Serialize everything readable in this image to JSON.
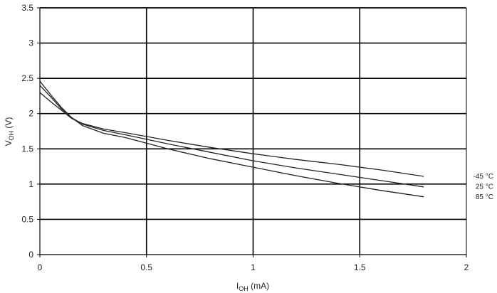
{
  "chart_data": {
    "type": "line",
    "xlabel": {
      "main": "I",
      "sub": "OH",
      "unit": " (mA)"
    },
    "ylabel": {
      "main": "V",
      "sub": "OH",
      "unit": " (V)"
    },
    "xlim": [
      0,
      2
    ],
    "ylim": [
      0,
      3.5
    ],
    "x_ticks": [
      0,
      0.5,
      1,
      1.5,
      2
    ],
    "x_tick_labels": [
      "0",
      "0.5",
      "1",
      "1.5",
      "2"
    ],
    "y_ticks": [
      0,
      0.5,
      1,
      1.5,
      2,
      2.5,
      3,
      3.5
    ],
    "y_tick_labels": [
      "0",
      "0.5",
      "1",
      "1.5",
      "2",
      "2.5",
      "3",
      "3.5"
    ],
    "grid": true,
    "legend_position": "right",
    "line_color": "#222222",
    "grid_color": "#000000",
    "series": [
      {
        "name": "-45 °C",
        "x": [
          0,
          0.05,
          0.1,
          0.15,
          0.2,
          0.3,
          0.4,
          0.6,
          0.8,
          1.0,
          1.2,
          1.4,
          1.6,
          1.8
        ],
        "y": [
          2.3,
          2.17,
          2.05,
          1.93,
          1.86,
          1.78,
          1.73,
          1.62,
          1.52,
          1.43,
          1.35,
          1.28,
          1.2,
          1.11
        ]
      },
      {
        "name": "25 °C",
        "x": [
          0,
          0.05,
          0.1,
          0.15,
          0.2,
          0.3,
          0.4,
          0.6,
          0.8,
          1.0,
          1.2,
          1.4,
          1.6,
          1.8
        ],
        "y": [
          2.4,
          2.24,
          2.07,
          1.94,
          1.85,
          1.76,
          1.7,
          1.57,
          1.45,
          1.33,
          1.23,
          1.14,
          1.05,
          0.96
        ]
      },
      {
        "name": "85 °C",
        "x": [
          0,
          0.05,
          0.1,
          0.15,
          0.2,
          0.3,
          0.4,
          0.6,
          0.8,
          1.0,
          1.2,
          1.4,
          1.6,
          1.8
        ],
        "y": [
          2.46,
          2.27,
          2.09,
          1.94,
          1.83,
          1.72,
          1.66,
          1.5,
          1.36,
          1.24,
          1.12,
          1.01,
          0.91,
          0.82
        ]
      }
    ]
  }
}
